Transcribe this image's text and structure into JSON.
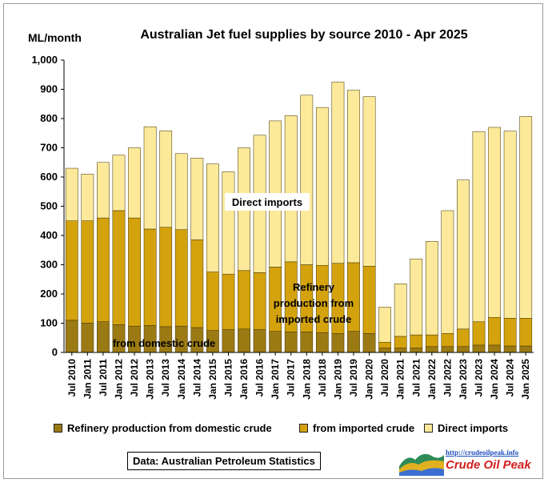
{
  "chart_data": {
    "type": "stacked bar",
    "title": "Australian Jet fuel supplies by source 2010 - Apr 2025",
    "ylabel": "ML/month",
    "ylim": [
      0,
      1000
    ],
    "yticks": [
      "0",
      "100",
      "200",
      "300",
      "400",
      "500",
      "600",
      "700",
      "800",
      "900",
      "1,000"
    ],
    "xtick_labels": [
      "Jul 2010",
      "Jan 2011",
      "Jul 2011",
      "Jan 2012",
      "Jul 2012",
      "Jan 2013",
      "Jul 2013",
      "Jan 2014",
      "Jul 2014",
      "Jan 2015",
      "Jul 2015",
      "Jan 2016",
      "Jul 2016",
      "Jan 2017",
      "Jul 2017",
      "Jan 2018",
      "Jul 2018",
      "Jan 2019",
      "Jul 2019",
      "Jan 2020",
      "Jul 2020",
      "Jan 2021",
      "Jul 2021",
      "Jan 2022",
      "Jul 2022",
      "Jan 2023",
      "Jul 2023",
      "Jan 2024",
      "Jul 2024",
      "Jan 2025"
    ],
    "x": [
      "2010-07",
      "2011-01",
      "2011-07",
      "2012-01",
      "2012-07",
      "2013-01",
      "2013-07",
      "2014-01",
      "2014-07",
      "2015-01",
      "2015-07",
      "2016-01",
      "2016-07",
      "2017-01",
      "2017-07",
      "2018-01",
      "2018-07",
      "2019-01",
      "2019-07",
      "2020-01",
      "2020-07",
      "2021-01",
      "2021-07",
      "2022-01",
      "2022-07",
      "2023-01",
      "2023-07",
      "2024-01",
      "2024-07",
      "2025-01"
    ],
    "series": [
      {
        "name": "Refinery production from domestic crude",
        "color": "#9b7a14",
        "values": [
          110,
          100,
          105,
          95,
          90,
          92,
          88,
          90,
          85,
          75,
          78,
          80,
          78,
          72,
          70,
          70,
          68,
          65,
          72,
          65,
          15,
          15,
          15,
          20,
          20,
          20,
          25,
          25,
          22,
          22
        ]
      },
      {
        "name": "from imported crude",
        "color": "#d4a20c",
        "values": [
          340,
          350,
          355,
          390,
          370,
          330,
          340,
          330,
          300,
          200,
          190,
          200,
          195,
          220,
          240,
          230,
          230,
          240,
          235,
          230,
          20,
          40,
          45,
          40,
          45,
          60,
          80,
          95,
          95,
          95
        ]
      },
      {
        "name": "Direct imports",
        "color": "#fce99a",
        "values": [
          180,
          160,
          190,
          190,
          240,
          350,
          330,
          260,
          280,
          370,
          350,
          420,
          470,
          500,
          500,
          580,
          540,
          620,
          590,
          580,
          120,
          180,
          260,
          320,
          420,
          510,
          650,
          650,
          640,
          690
        ]
      }
    ],
    "annotations": [
      "Direct imports",
      "Refinery production from imported crude",
      "from domestic crude"
    ],
    "grid": false,
    "legend_position": "bottom"
  },
  "ann": {
    "direct": "Direct imports",
    "refinery_line1": "Refinery",
    "refinery_line2": "production  from",
    "refinery_line3": "imported crude",
    "domestic": "from domestic crude"
  },
  "source": "Data: Australian Petroleum Statistics",
  "logo": {
    "url": "http://crudeoilpeak.info",
    "name": "Crude Oil Peak"
  }
}
